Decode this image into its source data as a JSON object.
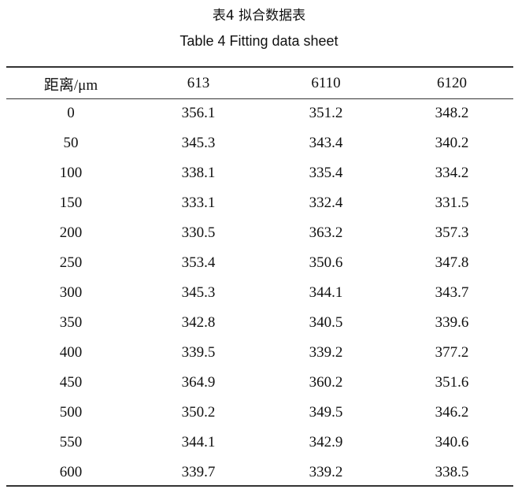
{
  "caption_cn": "表4  拟合数据表",
  "caption_en": "Table 4  Fitting data sheet",
  "table": {
    "headers": [
      "距离/μm",
      "613",
      "6110",
      "6120"
    ],
    "rows": [
      [
        "0",
        "356.1",
        "351.2",
        "348.2"
      ],
      [
        "50",
        "345.3",
        "343.4",
        "340.2"
      ],
      [
        "100",
        "338.1",
        "335.4",
        "334.2"
      ],
      [
        "150",
        "333.1",
        "332.4",
        "331.5"
      ],
      [
        "200",
        "330.5",
        "363.2",
        "357.3"
      ],
      [
        "250",
        "353.4",
        "350.6",
        "347.8"
      ],
      [
        "300",
        "345.3",
        "344.1",
        "343.7"
      ],
      [
        "350",
        "342.8",
        "340.5",
        "339.6"
      ],
      [
        "400",
        "339.5",
        "339.2",
        "377.2"
      ],
      [
        "450",
        "364.9",
        "360.2",
        "351.6"
      ],
      [
        "500",
        "350.2",
        "349.5",
        "346.2"
      ],
      [
        "550",
        "344.1",
        "342.9",
        "340.6"
      ],
      [
        "600",
        "339.7",
        "339.2",
        "338.5"
      ]
    ]
  }
}
